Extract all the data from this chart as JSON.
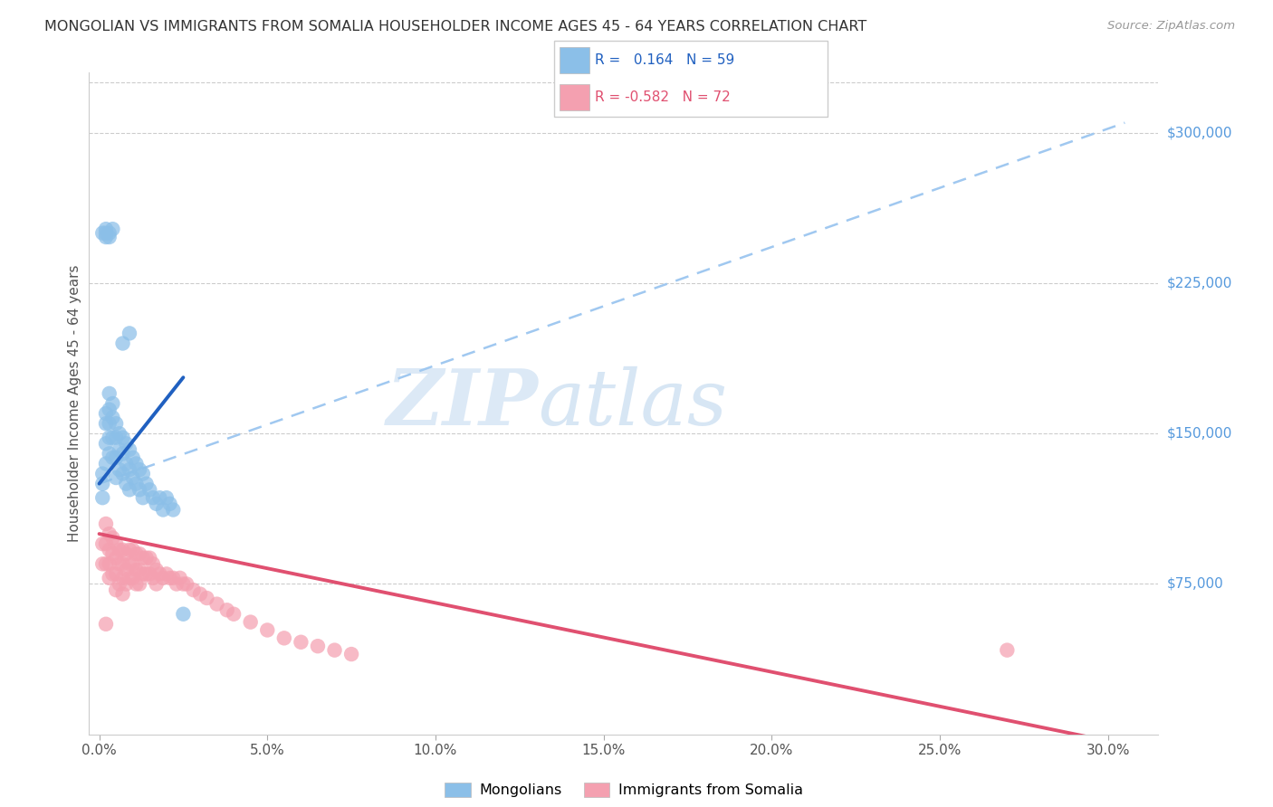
{
  "title": "MONGOLIAN VS IMMIGRANTS FROM SOMALIA HOUSEHOLDER INCOME AGES 45 - 64 YEARS CORRELATION CHART",
  "source": "Source: ZipAtlas.com",
  "ylabel": "Householder Income Ages 45 - 64 years",
  "xtick_labels": [
    "0.0%",
    "5.0%",
    "10.0%",
    "15.0%",
    "20.0%",
    "25.0%",
    "30.0%"
  ],
  "xtick_vals": [
    0.0,
    0.05,
    0.1,
    0.15,
    0.2,
    0.25,
    0.3
  ],
  "ytick_labels": [
    "$75,000",
    "$150,000",
    "$225,000",
    "$300,000"
  ],
  "ytick_vals": [
    75000,
    150000,
    225000,
    300000
  ],
  "ylim": [
    0,
    330000
  ],
  "xlim": [
    -0.003,
    0.315
  ],
  "color_mongolian": "#8BBFE8",
  "color_somalia": "#F4A0B0",
  "color_trendline_blue_solid": "#2060C0",
  "color_trendline_pink_solid": "#E05070",
  "color_trendline_dashed": "#A0C8F0",
  "watermark_color": "#C8DCF0",
  "r_mongolian": "0.164",
  "n_mongolian": "59",
  "r_somalia": "-0.582",
  "n_somalia": "72",
  "legend_label_mongolian": "Mongolians",
  "legend_label_somalia": "Immigrants from Somalia",
  "mongolian_x": [
    0.001,
    0.001,
    0.001,
    0.002,
    0.002,
    0.002,
    0.002,
    0.003,
    0.003,
    0.003,
    0.003,
    0.003,
    0.004,
    0.004,
    0.004,
    0.004,
    0.005,
    0.005,
    0.005,
    0.005,
    0.006,
    0.006,
    0.006,
    0.007,
    0.007,
    0.007,
    0.008,
    0.008,
    0.008,
    0.009,
    0.009,
    0.009,
    0.01,
    0.01,
    0.011,
    0.011,
    0.012,
    0.012,
    0.013,
    0.013,
    0.014,
    0.015,
    0.016,
    0.017,
    0.018,
    0.019,
    0.02,
    0.021,
    0.022,
    0.025,
    0.001,
    0.002,
    0.002,
    0.002,
    0.003,
    0.003,
    0.004,
    0.007,
    0.009
  ],
  "mongolian_y": [
    130000,
    125000,
    118000,
    160000,
    155000,
    145000,
    135000,
    170000,
    162000,
    155000,
    148000,
    140000,
    165000,
    158000,
    148000,
    138000,
    155000,
    148000,
    138000,
    128000,
    150000,
    142000,
    132000,
    148000,
    140000,
    130000,
    145000,
    135000,
    125000,
    142000,
    132000,
    122000,
    138000,
    128000,
    135000,
    125000,
    132000,
    122000,
    130000,
    118000,
    125000,
    122000,
    118000,
    115000,
    118000,
    112000,
    118000,
    115000,
    112000,
    60000,
    250000,
    252000,
    248000,
    250000,
    250000,
    248000,
    252000,
    195000,
    200000
  ],
  "somalia_x": [
    0.001,
    0.001,
    0.002,
    0.002,
    0.002,
    0.003,
    0.003,
    0.003,
    0.003,
    0.004,
    0.004,
    0.004,
    0.005,
    0.005,
    0.005,
    0.005,
    0.006,
    0.006,
    0.006,
    0.007,
    0.007,
    0.007,
    0.007,
    0.008,
    0.008,
    0.008,
    0.009,
    0.009,
    0.009,
    0.01,
    0.01,
    0.01,
    0.011,
    0.011,
    0.011,
    0.012,
    0.012,
    0.012,
    0.013,
    0.013,
    0.014,
    0.014,
    0.015,
    0.015,
    0.016,
    0.016,
    0.017,
    0.017,
    0.018,
    0.019,
    0.02,
    0.021,
    0.022,
    0.023,
    0.024,
    0.025,
    0.026,
    0.028,
    0.03,
    0.032,
    0.035,
    0.038,
    0.04,
    0.045,
    0.05,
    0.055,
    0.06,
    0.065,
    0.07,
    0.075,
    0.27,
    0.002
  ],
  "somalia_y": [
    95000,
    85000,
    105000,
    95000,
    85000,
    100000,
    92000,
    85000,
    78000,
    98000,
    90000,
    80000,
    95000,
    88000,
    80000,
    72000,
    92000,
    85000,
    75000,
    92000,
    85000,
    78000,
    70000,
    90000,
    82000,
    75000,
    92000,
    85000,
    78000,
    92000,
    85000,
    78000,
    90000,
    82000,
    75000,
    90000,
    82000,
    75000,
    88000,
    80000,
    88000,
    80000,
    88000,
    80000,
    85000,
    78000,
    82000,
    75000,
    80000,
    78000,
    80000,
    78000,
    78000,
    75000,
    78000,
    75000,
    75000,
    72000,
    70000,
    68000,
    65000,
    62000,
    60000,
    56000,
    52000,
    48000,
    46000,
    44000,
    42000,
    40000,
    42000,
    55000
  ],
  "trendline_blue_x0": 0.0,
  "trendline_blue_y0": 125000,
  "trendline_blue_x1": 0.025,
  "trendline_blue_y1": 178000,
  "trendline_blue_dash_x0": 0.0,
  "trendline_blue_dash_y0": 125000,
  "trendline_blue_dash_x1": 0.305,
  "trendline_blue_dash_y1": 305000,
  "trendline_pink_x0": 0.0,
  "trendline_pink_y0": 100000,
  "trendline_pink_x1": 0.305,
  "trendline_pink_y1": -5000
}
